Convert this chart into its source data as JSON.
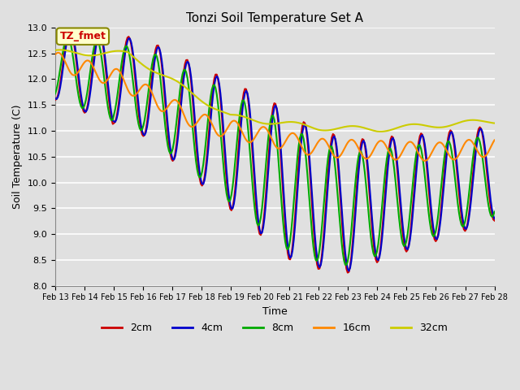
{
  "title": "Tonzi Soil Temperature Set A",
  "xlabel": "Time",
  "ylabel": "Soil Temperature (C)",
  "ylim": [
    8.0,
    13.0
  ],
  "yticks": [
    8.0,
    8.5,
    9.0,
    9.5,
    10.0,
    10.5,
    11.0,
    11.5,
    12.0,
    12.5,
    13.0
  ],
  "xtick_labels": [
    "Feb 13",
    "Feb 14",
    "Feb 15",
    "Feb 16",
    "Feb 17",
    "Feb 18",
    "Feb 19",
    "Feb 20",
    "Feb 21",
    "Feb 22",
    "Feb 23",
    "Feb 24",
    "Feb 25",
    "Feb 26",
    "Feb 27",
    "Feb 28"
  ],
  "annotation_text": "TZ_fmet",
  "annotation_bg": "#ffffcc",
  "annotation_border": "#888800",
  "line_colors": {
    "2cm": "#cc0000",
    "4cm": "#0000cc",
    "8cm": "#00aa00",
    "16cm": "#ff8800",
    "32cm": "#cccc00"
  },
  "bg_color": "#e0e0e0",
  "grid_color": "#ffffff"
}
